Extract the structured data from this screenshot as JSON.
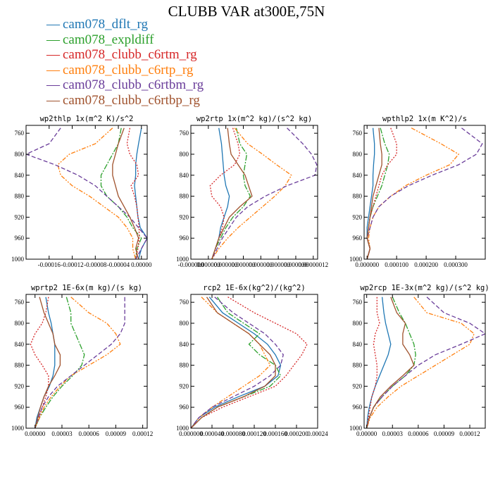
{
  "title": "CLUBB VAR at300E,75N",
  "legend": [
    {
      "name": "cam078_dflt_rg",
      "color": "#1f77b4"
    },
    {
      "name": "cam078_expldiff",
      "color": "#2ca02c"
    },
    {
      "name": "cam078_clubb_c6rtm_rg",
      "color": "#d62728"
    },
    {
      "name": "cam078_clubb_c6rtp_rg",
      "color": "#ff7f0e"
    },
    {
      "name": "cam078_clubb_c6rtbm_rg",
      "color": "#6a3d9a"
    },
    {
      "name": "cam078_clubb_c6rtbp_rg",
      "color": "#a0522d"
    }
  ],
  "chart_data": [
    {
      "type": "line",
      "title": "wp2thlp   1x(m^2 K)/s^2",
      "xlim": [
        -0.0002,
        1e-05
      ],
      "xticks": [
        -0.00016,
        -0.00012,
        -8e-05,
        -4e-05,
        0
      ],
      "xticklabels": [
        "-0.00016",
        "-0.00012",
        "-0.00008",
        "-0.00004",
        "0.00000"
      ],
      "ylim": [
        1000,
        745
      ],
      "yticks": [
        760,
        800,
        840,
        880,
        920,
        960,
        1000
      ],
      "y": [
        750,
        780,
        800,
        820,
        840,
        860,
        880,
        900,
        920,
        940,
        960,
        980,
        1000
      ],
      "series": [
        {
          "name": "cam078_dflt_rg",
          "values": [
            0.0,
            -5e-06,
            -8e-06,
            -1e-05,
            -1e-05,
            -1.2e-05,
            -1e-05,
            -8e-06,
            -6e-06,
            -2e-06,
            1e-05,
            0.0,
            -5e-06
          ]
        },
        {
          "name": "cam078_expldiff",
          "values": [
            -3.5e-05,
            -4e-05,
            -5e-05,
            -6e-05,
            -7e-05,
            -7e-05,
            -6e-05,
            -4e-05,
            -2.5e-05,
            -1.5e-05,
            0.0,
            -8e-06,
            -1e-05
          ]
        },
        {
          "name": "cam078_clubb_c6rtm_rg",
          "values": [
            -2e-05,
            -2.5e-05,
            -2e-05,
            -8e-06,
            -5e-06,
            -1.8e-05,
            -1.2e-05,
            -8e-06,
            -6e-06,
            -4e-06,
            -4e-06,
            -6e-06,
            -1e-05
          ]
        },
        {
          "name": "cam078_clubb_c6rtp_rg",
          "values": [
            -5e-05,
            -8e-05,
            -0.000125,
            -0.000145,
            -0.00014,
            -0.00012,
            -9e-05,
            -6.5e-05,
            -4e-05,
            -2.5e-05,
            -1.5e-05,
            -1.5e-05,
            -1e-05
          ]
        },
        {
          "name": "cam078_clubb_c6rtbm_rg",
          "values": [
            -0.00014,
            -0.00016,
            -0.0002,
            -0.00015,
            -0.00011,
            -8e-05,
            -6e-05,
            -4e-05,
            -2e-05,
            -5e-06,
            1e-05,
            0.0,
            -1e-05
          ]
        },
        {
          "name": "cam078_clubb_c6rtbp_rg",
          "values": [
            -3e-05,
            -4e-05,
            -4.5e-05,
            -5e-05,
            -5e-05,
            -4.5e-05,
            -4e-05,
            -3e-05,
            -2e-05,
            -1.2e-05,
            -5e-06,
            -1e-05,
            -5e-06
          ]
        }
      ]
    },
    {
      "type": "line",
      "title": "wp2rtp   1x(m^2 kg)/(s^2 kg)",
      "xlim": [
        -2e-08,
        1.25e-07
      ],
      "xticks": [
        -2e-08,
        0,
        2e-08,
        4e-08,
        6e-08,
        8e-08,
        1e-07,
        1.2e-07
      ],
      "xticklabels": [
        "-0.000000",
        "0.000000",
        "0.000000",
        "0.000000",
        "0.000000",
        "0.000000",
        "0.000000",
        "0.00000012"
      ],
      "ylim": [
        1000,
        745
      ],
      "yticks": [
        760,
        800,
        840,
        880,
        920,
        960,
        1000
      ],
      "y": [
        750,
        780,
        800,
        820,
        840,
        860,
        880,
        900,
        920,
        940,
        960,
        980,
        1000
      ],
      "series": [
        {
          "name": "cam078_dflt_rg",
          "values": [
            1.2e-08,
            1.5e-08,
            1.6e-08,
            1.7e-08,
            1.8e-08,
            2e-08,
            2.4e-08,
            2.2e-08,
            1.8e-08,
            1.4e-08,
            1.2e-08,
            8e-09,
            4e-09
          ]
        },
        {
          "name": "cam078_expldiff",
          "values": [
            3.2e-08,
            3.6e-08,
            4.4e-08,
            4.2e-08,
            4e-08,
            4.2e-08,
            4.8e-08,
            4e-08,
            2.8e-08,
            2e-08,
            1.4e-08,
            8e-09,
            4e-09
          ]
        },
        {
          "name": "cam078_clubb_c6rtm_rg",
          "values": [
            2.8e-08,
            3.4e-08,
            3.6e-08,
            3e-08,
            1.4e-08,
            2e-09,
            4e-09,
            1.4e-08,
            1.8e-08,
            1.6e-08,
            1.2e-08,
            8e-09,
            4e-09
          ]
        },
        {
          "name": "cam078_clubb_c6rtp_rg",
          "values": [
            3e-08,
            4.5e-08,
            6.2e-08,
            7.8e-08,
            9.5e-08,
            8.8e-08,
            7.6e-08,
            6.2e-08,
            4.8e-08,
            3.4e-08,
            2.2e-08,
            1.2e-08,
            4e-09
          ]
        },
        {
          "name": "cam078_clubb_c6rtbm_rg",
          "values": [
            9e-08,
            1.08e-07,
            1.18e-07,
            1.24e-07,
            1.22e-07,
            9e-08,
            6.5e-08,
            4.5e-08,
            3.2e-08,
            2.4e-08,
            1.6e-08,
            1e-08,
            4e-09
          ]
        },
        {
          "name": "cam078_clubb_c6rtbp_rg",
          "values": [
            2.2e-08,
            2.4e-08,
            2.6e-08,
            3.4e-08,
            4.2e-08,
            4.6e-08,
            5e-08,
            3.6e-08,
            2.4e-08,
            1.8e-08,
            1.2e-08,
            8e-09,
            4e-09
          ]
        }
      ]
    },
    {
      "type": "line",
      "title": "wpthlp2   1x(m K^2)/s",
      "xlim": [
        -1e-05,
        0.0004
      ],
      "xticks": [
        0,
        0.0001,
        0.0002,
        0.0003
      ],
      "xticklabels": [
        "0.000000",
        "0.000100",
        "0.000200",
        "0.000300"
      ],
      "ylim": [
        1000,
        745
      ],
      "yticks": [
        760,
        800,
        840,
        880,
        920,
        960,
        1000
      ],
      "y": [
        750,
        780,
        800,
        820,
        840,
        860,
        880,
        900,
        920,
        940,
        960,
        980,
        1000
      ],
      "series": [
        {
          "name": "cam078_dflt_rg",
          "values": [
            2e-05,
            2.5e-05,
            2.5e-05,
            2.2e-05,
            2e-05,
            2e-05,
            1.5e-05,
            1e-05,
            5e-06,
            0.0,
            0.0,
            1e-05,
            0.0
          ]
        },
        {
          "name": "cam078_expldiff",
          "values": [
            4.5e-05,
            6e-05,
            7.5e-05,
            7e-05,
            6e-05,
            5e-05,
            3.5e-05,
            2e-05,
            1e-05,
            5e-06,
            0.0,
            1e-05,
            0.0
          ]
        },
        {
          "name": "cam078_clubb_c6rtm_rg",
          "values": [
            8e-05,
            0.0001,
            0.0001,
            7e-05,
            5e-05,
            4e-05,
            3e-05,
            2e-05,
            1e-05,
            5e-06,
            0.0,
            1e-05,
            0.0
          ]
        },
        {
          "name": "cam078_clubb_c6rtp_rg",
          "values": [
            0.00015,
            0.00025,
            0.00031,
            0.00028,
            0.0002,
            0.00013,
            8e-05,
            4e-05,
            2e-05,
            1e-05,
            5e-06,
            1e-05,
            0.0
          ]
        },
        {
          "name": "cam078_clubb_c6rtbm_rg",
          "values": [
            0.00032,
            0.00039,
            0.00037,
            0.00031,
            0.00022,
            0.00014,
            8e-05,
            4e-05,
            2e-05,
            1e-05,
            0.0,
            1e-05,
            0.0
          ]
        },
        {
          "name": "cam078_clubb_c6rtbp_rg",
          "values": [
            4e-05,
            4.5e-05,
            5e-05,
            5e-05,
            4e-05,
            3e-05,
            2e-05,
            1.5e-05,
            1e-05,
            5e-06,
            0.0,
            1e-05,
            0.0
          ]
        }
      ]
    },
    {
      "type": "line",
      "title": "wprtp2   1E-6x(m kg)/(s kg)",
      "xlim": [
        -1e-05,
        0.000125
      ],
      "xticks": [
        0,
        3e-05,
        6e-05,
        9e-05,
        0.00012
      ],
      "xticklabels": [
        "0.00000",
        "0.00003",
        "0.00006",
        "0.00009",
        "0.00012"
      ],
      "ylim": [
        1000,
        745
      ],
      "yticks": [
        760,
        800,
        840,
        880,
        920,
        960,
        1000
      ],
      "y": [
        750,
        780,
        800,
        820,
        840,
        860,
        880,
        900,
        920,
        940,
        960,
        980,
        1000
      ],
      "series": [
        {
          "name": "cam078_dflt_rg",
          "values": [
            1.2e-05,
            1.5e-05,
            1.8e-05,
            2e-05,
            2.2e-05,
            2.2e-05,
            2.2e-05,
            2e-05,
            1.6e-05,
            1e-05,
            6e-06,
            2e-06,
            0.0
          ]
        },
        {
          "name": "cam078_expldiff",
          "values": [
            3.5e-05,
            4e-05,
            4e-05,
            4.5e-05,
            5e-05,
            5.5e-05,
            5.2e-05,
            4.2e-05,
            3e-05,
            2e-05,
            1.2e-05,
            5e-06,
            0.0
          ]
        },
        {
          "name": "cam078_clubb_c6rtm_rg",
          "values": [
            1.5e-05,
            1.2e-05,
            8e-06,
            0.0,
            -5e-06,
            0.0,
            8e-06,
            1.5e-05,
            1.5e-05,
            1.2e-05,
            8e-06,
            4e-06,
            0.0
          ]
        },
        {
          "name": "cam078_clubb_c6rtp_rg",
          "values": [
            4e-05,
            6e-05,
            8e-05,
            9e-05,
            9.5e-05,
            8e-05,
            6e-05,
            4e-05,
            2.8e-05,
            1.8e-05,
            1e-05,
            5e-06,
            0.0
          ]
        },
        {
          "name": "cam078_clubb_c6rtbm_rg",
          "values": [
            0.0001,
            0.0001,
            0.0001,
            9.5e-05,
            8.5e-05,
            7e-05,
            5.5e-05,
            4e-05,
            2.5e-05,
            1.5e-05,
            8e-06,
            4e-06,
            0.0
          ]
        },
        {
          "name": "cam078_clubb_c6rtbp_rg",
          "values": [
            5e-06,
            1e-05,
            1.5e-05,
            2e-05,
            2.2e-05,
            2.8e-05,
            2.8e-05,
            2.2e-05,
            1.5e-05,
            1e-05,
            6e-06,
            3e-06,
            0.0
          ]
        }
      ]
    },
    {
      "type": "line",
      "title": "rcp2   1E-6x(kg^2)/(kg^2)",
      "xlim": [
        0,
        0.00024
      ],
      "xticks": [
        0,
        4e-05,
        8e-05,
        0.00012,
        0.00016,
        0.0002,
        0.00024
      ],
      "xticklabels": [
        "0.000000",
        "0.000040",
        "0.000080",
        "0.000120",
        "0.000160",
        "0.000200",
        "0.00024"
      ],
      "ylim": [
        1000,
        745
      ],
      "yticks": [
        760,
        800,
        840,
        880,
        920,
        960,
        1000
      ],
      "y": [
        750,
        780,
        800,
        820,
        840,
        860,
        880,
        900,
        920,
        940,
        960,
        980,
        1000
      ],
      "series": [
        {
          "name": "cam078_dflt_rg",
          "values": [
            3.5e-05,
            6e-05,
            9e-05,
            0.00012,
            0.000145,
            0.00016,
            0.00017,
            0.000165,
            0.00014,
            9e-05,
            4.5e-05,
            1.5e-05,
            0.0
          ]
        },
        {
          "name": "cam078_expldiff",
          "values": [
            5e-05,
            7e-05,
            0.0001,
            0.00013,
            0.00011,
            0.00013,
            0.00016,
            0.00017,
            0.00015,
            0.0001,
            5e-05,
            2e-05,
            0.0
          ]
        },
        {
          "name": "cam078_clubb_c6rtm_rg",
          "values": [
            7e-05,
            0.00012,
            0.00016,
            0.0002,
            0.00022,
            0.00021,
            0.000195,
            0.00018,
            0.00016,
            0.00011,
            6e-05,
            2e-05,
            0.0
          ]
        },
        {
          "name": "cam078_clubb_c6rtp_rg",
          "values": [
            2e-05,
            5e-05,
            8e-05,
            0.00011,
            0.00013,
            0.00014,
            0.00015,
            0.00013,
            0.0001,
            7e-05,
            4e-05,
            1.5e-05,
            0.0
          ]
        },
        {
          "name": "cam078_clubb_c6rtbm_rg",
          "values": [
            4.5e-05,
            8e-05,
            0.00011,
            0.00014,
            0.00016,
            0.000175,
            0.00017,
            0.00015,
            0.00012,
            8e-05,
            4e-05,
            1.5e-05,
            0.0
          ]
        },
        {
          "name": "cam078_clubb_c6rtbp_rg",
          "values": [
            3e-05,
            5e-05,
            8e-05,
            0.00011,
            0.00013,
            0.00015,
            0.00016,
            0.00016,
            0.00014,
            0.0001,
            5e-05,
            2e-05,
            0.0
          ]
        }
      ]
    },
    {
      "type": "line",
      "title": "wp2rcp   1E-3x(m^2 kg)/(s^2 kg)",
      "xlim": [
        -3e-06,
        0.000138
      ],
      "xticks": [
        0,
        3e-05,
        6e-05,
        9e-05,
        0.00012
      ],
      "xticklabels": [
        "0.00000",
        "0.00003",
        "0.00006",
        "0.00009",
        "0.00012"
      ],
      "ylim": [
        1000,
        745
      ],
      "yticks": [
        760,
        800,
        840,
        880,
        920,
        960,
        1000
      ],
      "y": [
        750,
        780,
        800,
        820,
        840,
        860,
        880,
        900,
        920,
        940,
        960,
        980,
        1000
      ],
      "series": [
        {
          "name": "cam078_dflt_rg",
          "values": [
            1.8e-05,
            2e-05,
            2.2e-05,
            2.5e-05,
            2.8e-05,
            2.5e-05,
            2e-05,
            1.5e-05,
            1e-05,
            6e-06,
            3e-06,
            1e-06,
            0.0
          ]
        },
        {
          "name": "cam078_expldiff",
          "values": [
            3e-05,
            3.8e-05,
            4.5e-05,
            5e-05,
            5.5e-05,
            5.7e-05,
            5.5e-05,
            4.5e-05,
            3e-05,
            1.8e-05,
            8e-06,
            3e-06,
            0.0
          ]
        },
        {
          "name": "cam078_clubb_c6rtm_rg",
          "values": [
            1.2e-05,
            1.2e-05,
            1.5e-05,
            1e-05,
            8e-06,
            1e-05,
            1.2e-05,
            1.2e-05,
            1e-05,
            6e-06,
            4e-06,
            2e-06,
            0.0
          ]
        },
        {
          "name": "cam078_clubb_c6rtp_rg",
          "values": [
            5.5e-05,
            7e-05,
            0.00011,
            0.000125,
            0.00012,
            0.0001,
            8e-05,
            6e-05,
            4e-05,
            2.5e-05,
            1.2e-05,
            4e-06,
            0.0
          ]
        },
        {
          "name": "cam078_clubb_c6rtbm_rg",
          "values": [
            7e-05,
            9e-05,
            0.00012,
            0.000138,
            0.00011,
            8e-05,
            6e-05,
            4.5e-05,
            3e-05,
            1.8e-05,
            8e-06,
            3e-06,
            0.0
          ]
        },
        {
          "name": "cam078_clubb_c6rtbp_rg",
          "values": [
            2.8e-05,
            3.5e-05,
            4.5e-05,
            4.2e-05,
            4.2e-05,
            5e-05,
            5.5e-05,
            4.2e-05,
            2.8e-05,
            1.6e-05,
            8e-06,
            3e-06,
            0.0
          ]
        }
      ]
    }
  ]
}
